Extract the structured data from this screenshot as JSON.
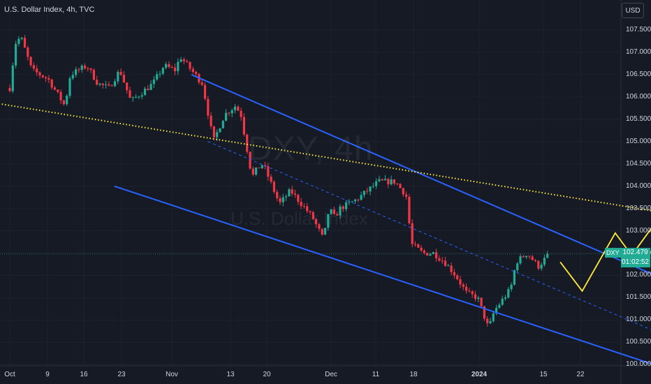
{
  "header": {
    "title": "U.S. Dollar Index, 4h, TVC",
    "currency_button": "USD"
  },
  "watermark": {
    "symbol": "DXY, 4h",
    "name": "U.S. Dollar Index"
  },
  "price_tag": {
    "symbol": "DXY",
    "price": "102.479",
    "countdown": "01:02:52"
  },
  "colors": {
    "up": "#22ab94",
    "down": "#f23645",
    "channel": "#2962ff",
    "trendline": "#ffeb3b",
    "projection": "#ffeb3b",
    "background": "#161a25"
  },
  "chart_data": {
    "type": "candlestick",
    "title": "U.S. Dollar Index, 4h, TVC",
    "y_ticks": [
      "107.500",
      "107.000",
      "106.500",
      "106.000",
      "105.500",
      "105.000",
      "104.500",
      "104.000",
      "103.500",
      "103.000",
      "102.500",
      "102.000",
      "101.500",
      "101.000",
      "100.500",
      "100.000"
    ],
    "x_ticks": [
      {
        "label": "Oct",
        "bold": false
      },
      {
        "label": "9",
        "bold": false
      },
      {
        "label": "16",
        "bold": false
      },
      {
        "label": "23",
        "bold": false
      },
      {
        "label": "Nov",
        "bold": false
      },
      {
        "label": "13",
        "bold": false
      },
      {
        "label": "20",
        "bold": false
      },
      {
        "label": "Dec",
        "bold": false
      },
      {
        "label": "11",
        "bold": false
      },
      {
        "label": "18",
        "bold": false
      },
      {
        "label": "2024",
        "bold": true
      },
      {
        "label": "15",
        "bold": false
      },
      {
        "label": "22",
        "bold": false
      }
    ],
    "ylim": [
      99.9,
      108.1
    ],
    "last_price": 102.479,
    "price_path": [
      [
        "2023-10-02",
        106.2
      ],
      [
        "2023-10-03",
        107.2
      ],
      [
        "2023-10-04",
        107.35
      ],
      [
        "2023-10-06",
        106.6
      ],
      [
        "2023-10-09",
        106.4
      ],
      [
        "2023-10-11",
        106.0
      ],
      [
        "2023-10-12",
        105.8
      ],
      [
        "2023-10-13",
        106.5
      ],
      [
        "2023-10-16",
        106.7
      ],
      [
        "2023-10-18",
        106.3
      ],
      [
        "2023-10-20",
        106.2
      ],
      [
        "2023-10-22",
        106.6
      ],
      [
        "2023-10-24",
        105.9
      ],
      [
        "2023-10-26",
        106.1
      ],
      [
        "2023-10-28",
        106.3
      ],
      [
        "2023-10-30",
        106.7
      ],
      [
        "2023-11-01",
        106.6
      ],
      [
        "2023-11-02",
        106.9
      ],
      [
        "2023-11-04",
        106.6
      ],
      [
        "2023-11-06",
        106.3
      ],
      [
        "2023-11-08",
        105.0
      ],
      [
        "2023-11-09",
        105.3
      ],
      [
        "2023-11-10",
        105.6
      ],
      [
        "2023-11-12",
        105.8
      ],
      [
        "2023-11-13",
        105.6
      ],
      [
        "2023-11-15",
        104.2
      ],
      [
        "2023-11-16",
        104.4
      ],
      [
        "2023-11-17",
        104.5
      ],
      [
        "2023-11-20",
        103.6
      ],
      [
        "2023-11-22",
        103.9
      ],
      [
        "2023-11-24",
        103.6
      ],
      [
        "2023-11-26",
        103.3
      ],
      [
        "2023-11-28",
        102.8
      ],
      [
        "2023-11-29",
        103.5
      ],
      [
        "2023-11-30",
        103.3
      ],
      [
        "2023-12-01",
        103.5
      ],
      [
        "2023-12-04",
        103.7
      ],
      [
        "2023-12-06",
        103.9
      ],
      [
        "2023-12-08",
        104.1
      ],
      [
        "2023-12-11",
        104.1
      ],
      [
        "2023-12-13",
        103.8
      ],
      [
        "2023-12-14",
        102.7
      ],
      [
        "2023-12-16",
        102.5
      ],
      [
        "2023-12-18",
        102.5
      ],
      [
        "2023-12-20",
        102.3
      ],
      [
        "2023-12-22",
        102.0
      ],
      [
        "2023-12-24",
        101.6
      ],
      [
        "2023-12-26",
        101.5
      ],
      [
        "2023-12-28",
        100.8
      ],
      [
        "2023-12-29",
        101.2
      ],
      [
        "2024-01-01",
        101.7
      ],
      [
        "2024-01-02",
        102.3
      ],
      [
        "2024-01-04",
        102.5
      ],
      [
        "2024-01-06",
        102.2
      ],
      [
        "2024-01-08",
        102.479
      ]
    ],
    "annotations": {
      "channel_upper": [
        [
          "2023-11-04",
          106.5
        ],
        [
          "2024-01-31",
          101.8
        ]
      ],
      "channel_lower": [
        [
          "2023-10-21",
          104.0
        ],
        [
          "2024-01-27",
          100.0
        ]
      ],
      "channel_mid": [
        [
          "2023-11-07",
          105.0
        ],
        [
          "2024-01-31",
          100.55
        ]
      ],
      "trendline": [
        [
          "2023-09-30",
          105.85
        ],
        [
          "2024-02-08",
          103.2
        ]
      ],
      "projection": [
        [
          "2024-01-10",
          102.3
        ],
        [
          "2024-01-14",
          101.65
        ],
        [
          "2024-01-20",
          102.95
        ],
        [
          "2024-01-23",
          102.45
        ],
        [
          "2024-01-28",
          103.3
        ]
      ]
    }
  }
}
